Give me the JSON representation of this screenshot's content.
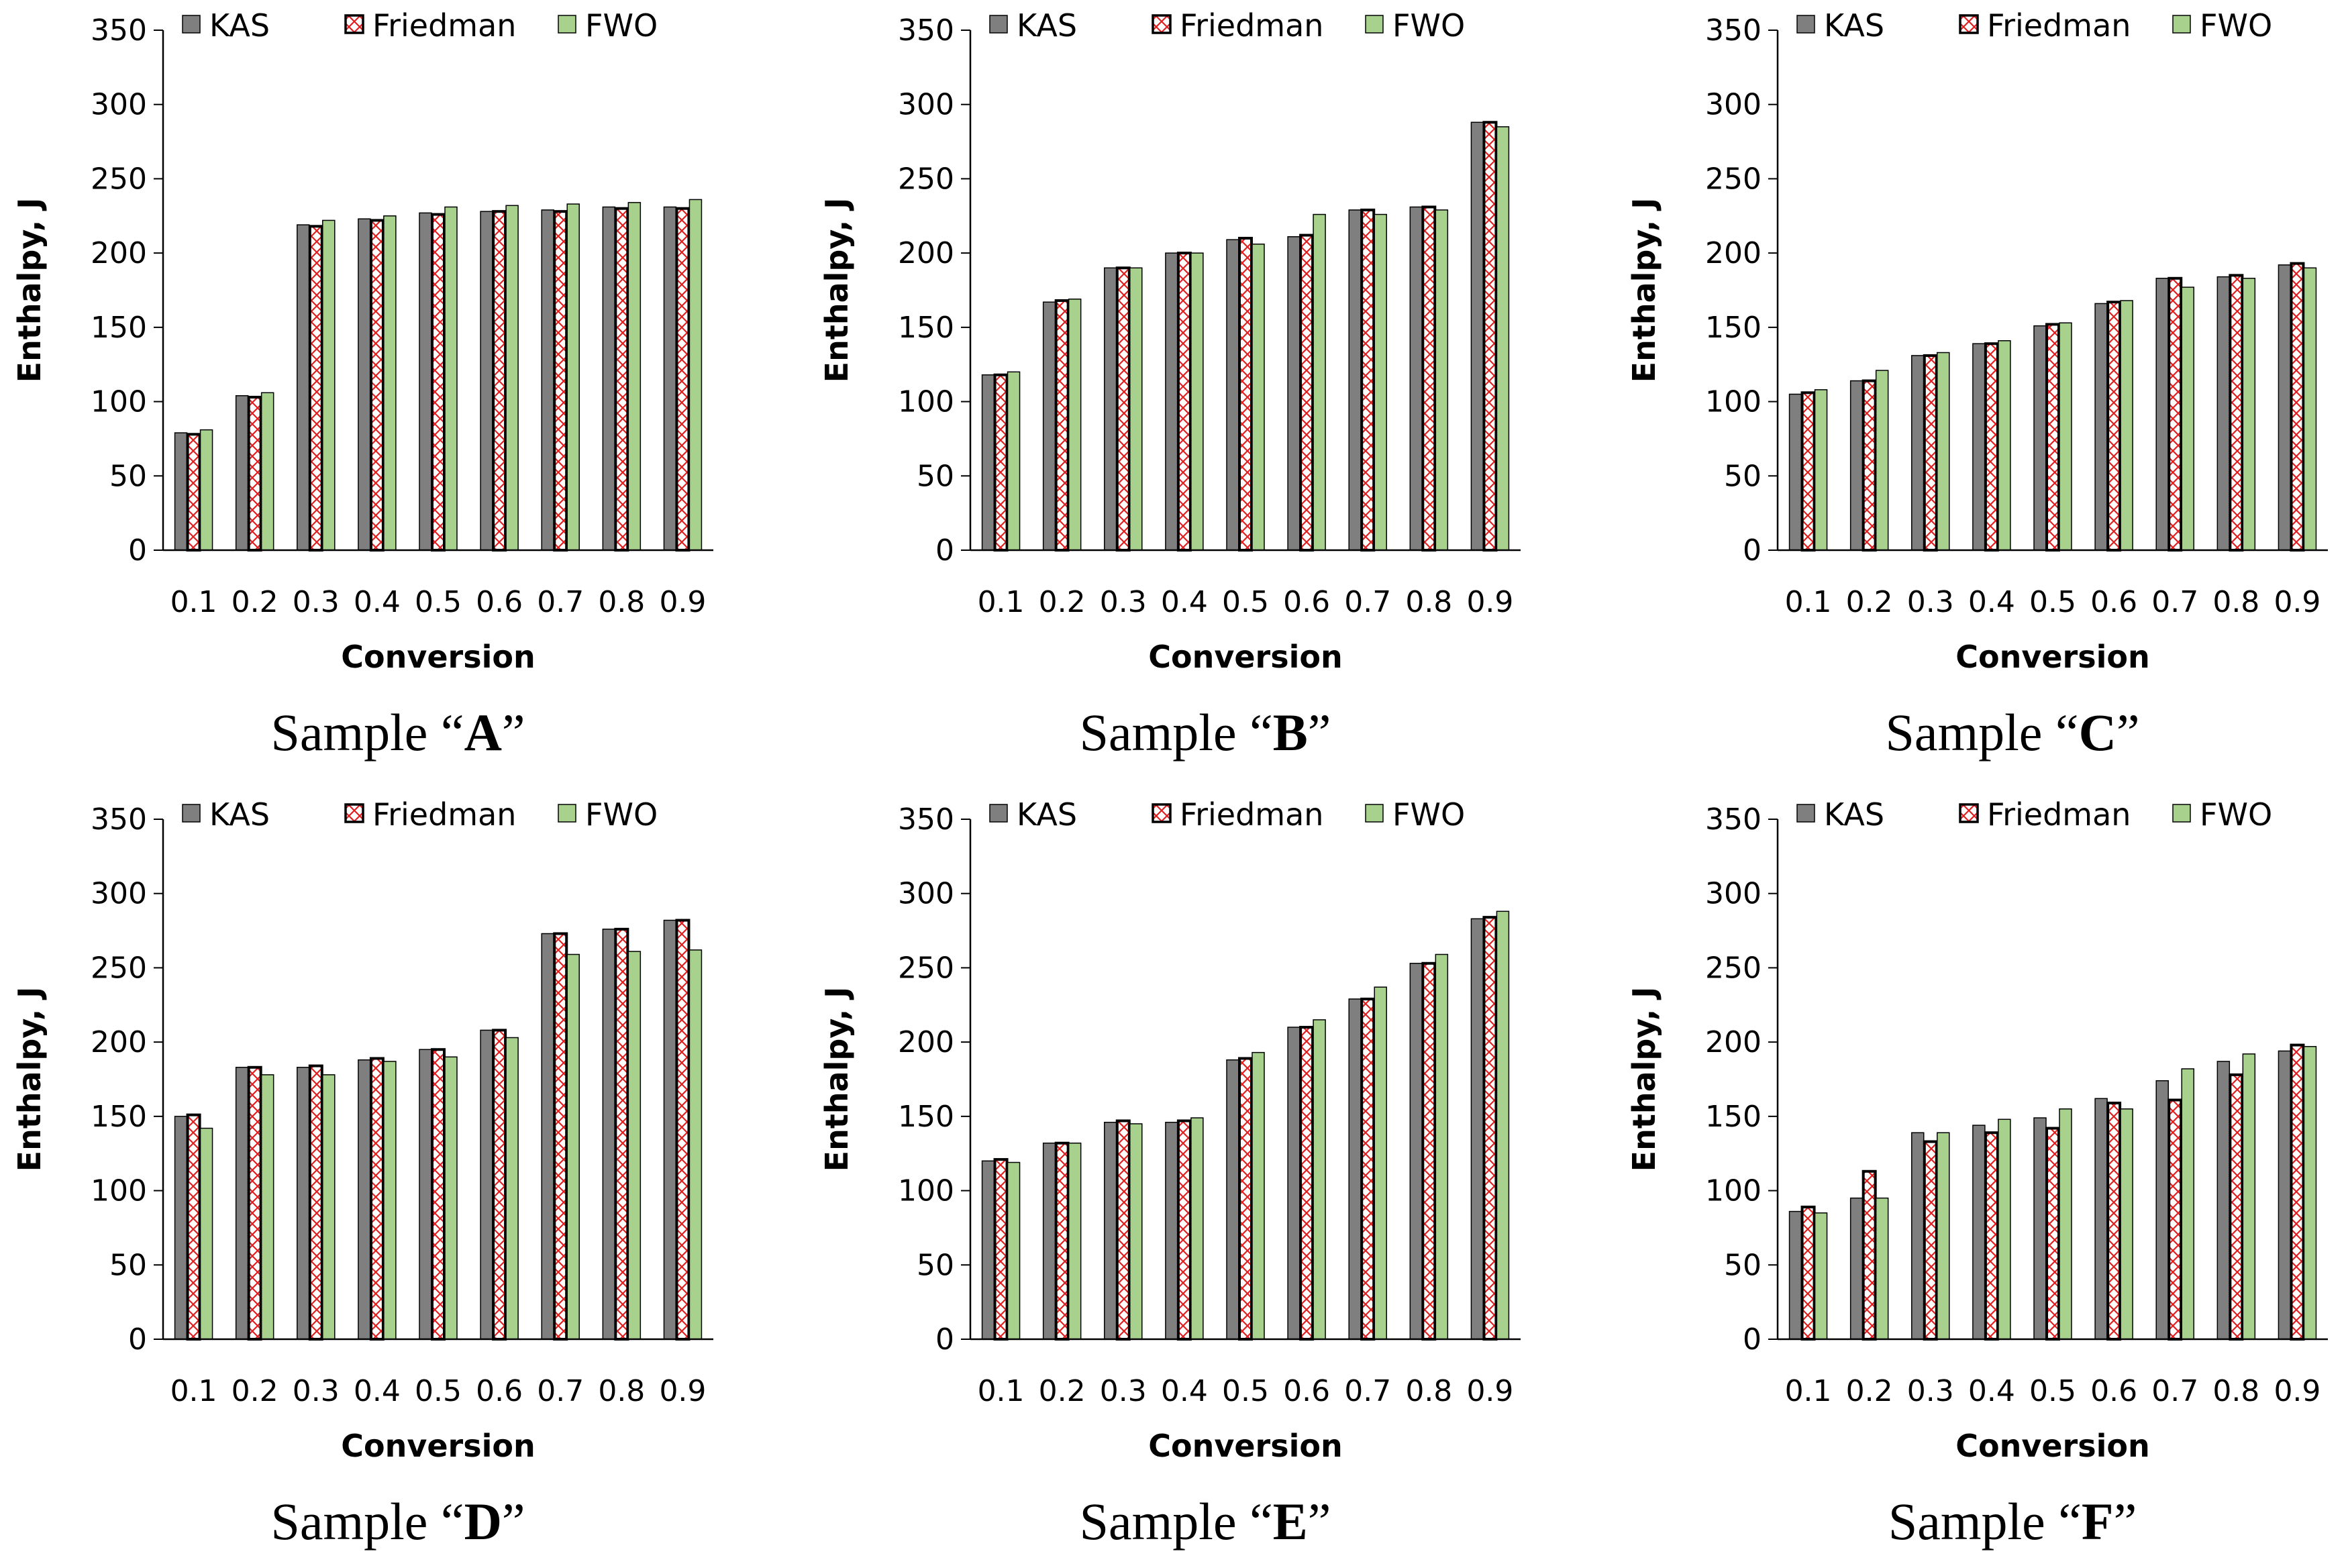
{
  "chart_data": [
    {
      "type": "bar",
      "caption": {
        "prefix": "Sample “",
        "letter": "A",
        "suffix": "”"
      },
      "categories": [
        "0.1",
        "0.2",
        "0.3",
        "0.4",
        "0.5",
        "0.6",
        "0.7",
        "0.8",
        "0.9"
      ],
      "series": [
        {
          "name": "KAS",
          "values": [
            79,
            104,
            219,
            223,
            227,
            228,
            229,
            231,
            231
          ]
        },
        {
          "name": "Friedman",
          "values": [
            78,
            103,
            218,
            222,
            226,
            228,
            228,
            230,
            230
          ]
        },
        {
          "name": "FWO",
          "values": [
            81,
            106,
            222,
            225,
            231,
            232,
            233,
            234,
            236
          ]
        }
      ],
      "xlabel": "Conversion",
      "ylabel": "Enthalpy, J",
      "ylim": [
        0,
        350
      ],
      "yticks": [
        "0",
        "50",
        "100",
        "150",
        "200",
        "250",
        "300",
        "350"
      ],
      "legend": "top",
      "grid": false
    },
    {
      "type": "bar",
      "caption": {
        "prefix": "Sample “",
        "letter": "B",
        "suffix": "”"
      },
      "categories": [
        "0.1",
        "0.2",
        "0.3",
        "0.4",
        "0.5",
        "0.6",
        "0.7",
        "0.8",
        "0.9"
      ],
      "series": [
        {
          "name": "KAS",
          "values": [
            118,
            167,
            190,
            200,
            209,
            211,
            229,
            231,
            288
          ]
        },
        {
          "name": "Friedman",
          "values": [
            118,
            168,
            190,
            200,
            210,
            212,
            229,
            231,
            288
          ]
        },
        {
          "name": "FWO",
          "values": [
            120,
            169,
            190,
            200,
            206,
            226,
            226,
            229,
            285
          ]
        }
      ],
      "xlabel": "Conversion",
      "ylabel": "Enthalpy, J",
      "ylim": [
        0,
        350
      ],
      "yticks": [
        "0",
        "50",
        "100",
        "150",
        "200",
        "250",
        "300",
        "350"
      ],
      "legend": "top",
      "grid": false
    },
    {
      "type": "bar",
      "caption": {
        "prefix": "Sample “",
        "letter": "C",
        "suffix": "”"
      },
      "categories": [
        "0.1",
        "0.2",
        "0.3",
        "0.4",
        "0.5",
        "0.6",
        "0.7",
        "0.8",
        "0.9"
      ],
      "series": [
        {
          "name": "KAS",
          "values": [
            105,
            114,
            131,
            139,
            151,
            166,
            183,
            184,
            192
          ]
        },
        {
          "name": "Friedman",
          "values": [
            106,
            114,
            131,
            139,
            152,
            167,
            183,
            185,
            193
          ]
        },
        {
          "name": "FWO",
          "values": [
            108,
            121,
            133,
            141,
            153,
            168,
            177,
            183,
            190
          ]
        }
      ],
      "xlabel": "Conversion",
      "ylabel": "Enthalpy, J",
      "ylim": [
        0,
        350
      ],
      "yticks": [
        "0",
        "50",
        "100",
        "150",
        "200",
        "250",
        "300",
        "350"
      ],
      "legend": "top",
      "grid": false
    },
    {
      "type": "bar",
      "caption": {
        "prefix": "Sample “",
        "letter": "D",
        "suffix": "”"
      },
      "categories": [
        "0.1",
        "0.2",
        "0.3",
        "0.4",
        "0.5",
        "0.6",
        "0.7",
        "0.8",
        "0.9"
      ],
      "series": [
        {
          "name": "KAS",
          "values": [
            150,
            183,
            183,
            188,
            195,
            208,
            273,
            276,
            282
          ]
        },
        {
          "name": "Friedman",
          "values": [
            151,
            183,
            184,
            189,
            195,
            208,
            273,
            276,
            282
          ]
        },
        {
          "name": "FWO",
          "values": [
            142,
            178,
            178,
            187,
            190,
            203,
            259,
            261,
            262
          ]
        }
      ],
      "xlabel": "Conversion",
      "ylabel": "Enthalpy, J",
      "ylim": [
        0,
        350
      ],
      "yticks": [
        "0",
        "50",
        "100",
        "150",
        "200",
        "250",
        "300",
        "350"
      ],
      "legend": "top",
      "grid": false
    },
    {
      "type": "bar",
      "caption": {
        "prefix": "Sample “",
        "letter": "E",
        "suffix": "”"
      },
      "categories": [
        "0.1",
        "0.2",
        "0.3",
        "0.4",
        "0.5",
        "0.6",
        "0.7",
        "0.8",
        "0.9"
      ],
      "series": [
        {
          "name": "KAS",
          "values": [
            120,
            132,
            146,
            146,
            188,
            210,
            229,
            253,
            283
          ]
        },
        {
          "name": "Friedman",
          "values": [
            121,
            132,
            147,
            147,
            189,
            210,
            229,
            253,
            284
          ]
        },
        {
          "name": "FWO",
          "values": [
            119,
            132,
            145,
            149,
            193,
            215,
            237,
            259,
            288
          ]
        }
      ],
      "xlabel": "Conversion",
      "ylabel": "Enthalpy, J",
      "ylim": [
        0,
        350
      ],
      "yticks": [
        "0",
        "50",
        "100",
        "150",
        "200",
        "250",
        "300",
        "350"
      ],
      "legend": "top",
      "grid": false
    },
    {
      "type": "bar",
      "caption": {
        "prefix": "Sample “",
        "letter": "F",
        "suffix": "”"
      },
      "categories": [
        "0.1",
        "0.2",
        "0.3",
        "0.4",
        "0.5",
        "0.6",
        "0.7",
        "0.8",
        "0.9"
      ],
      "series": [
        {
          "name": "KAS",
          "values": [
            86,
            95,
            139,
            144,
            149,
            162,
            174,
            187,
            194
          ]
        },
        {
          "name": "Friedman",
          "values": [
            89,
            113,
            133,
            139,
            142,
            159,
            161,
            178,
            198
          ]
        },
        {
          "name": "FWO",
          "values": [
            85,
            95,
            139,
            148,
            155,
            155,
            182,
            192,
            197
          ]
        }
      ],
      "xlabel": "Conversion",
      "ylabel": "Enthalpy, J",
      "ylim": [
        0,
        350
      ],
      "yticks": [
        "0",
        "50",
        "100",
        "150",
        "200",
        "250",
        "300",
        "350"
      ],
      "legend": "top",
      "grid": false
    }
  ],
  "colors": {
    "kas_fill": "#7f7f7f",
    "friedman_fill": "#ffffff",
    "friedman_hatch": "#e02020",
    "fwo_fill": "#a9d18e",
    "axis": "#000000"
  }
}
